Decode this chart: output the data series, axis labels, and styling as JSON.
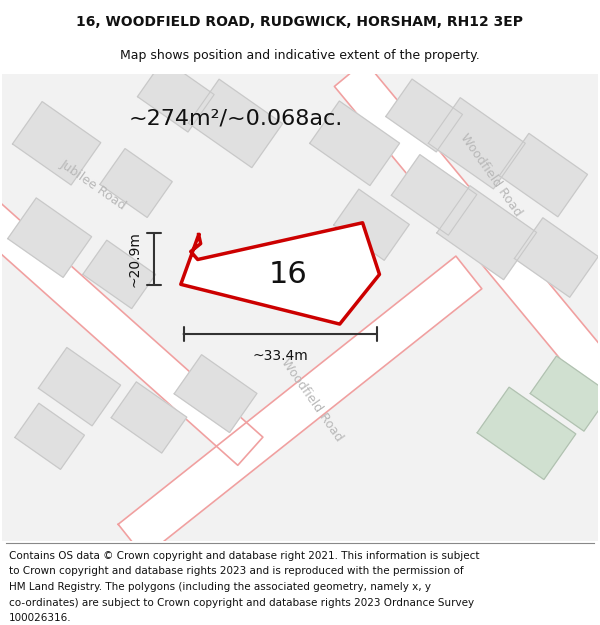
{
  "title_line1": "16, WOODFIELD ROAD, RUDGWICK, HORSHAM, RH12 3EP",
  "title_line2": "Map shows position and indicative extent of the property.",
  "area_text": "~274m²/~0.068ac.",
  "number_label": "16",
  "width_label": "~33.4m",
  "height_label": "~20.9m",
  "footer_lines": [
    "Contains OS data © Crown copyright and database right 2021. This information is subject",
    "to Crown copyright and database rights 2023 and is reproduced with the permission of",
    "HM Land Registry. The polygons (including the associated geometry, namely x, y",
    "co-ordinates) are subject to Crown copyright and database rights 2023 Ordnance Survey",
    "100026316."
  ],
  "map_bg": "#f2f2f2",
  "property_poly_color": "#cc0000",
  "property_fill_color": "#ffffff",
  "building_fill": "#e0e0e0",
  "building_stroke": "#c8c8c8",
  "road_bg": "#ffffff",
  "road_border": "#f0a0a0",
  "road_label_color": "#b8b8b8",
  "dim_line_color": "#333333",
  "green_fill": "#d0e0d0",
  "green_stroke": "#b0c0b0",
  "title_fontsize": 10,
  "subtitle_fontsize": 9,
  "area_fontsize": 16,
  "number_fontsize": 22,
  "dim_fontsize": 10,
  "footer_fontsize": 7.5
}
